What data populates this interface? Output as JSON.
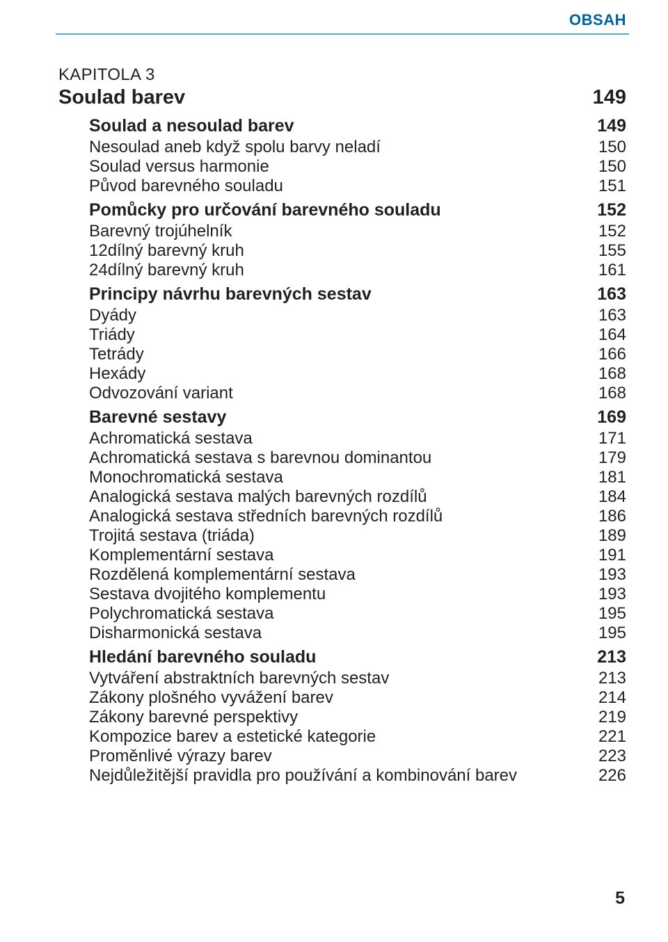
{
  "header": {
    "label": "OBSAH"
  },
  "page_number": "5",
  "toc": {
    "kapitola_label": "KAPITOLA 3",
    "chapter": {
      "title": "Soulad barev",
      "page": "149"
    },
    "sections": [
      {
        "title": "Soulad a nesoulad barev",
        "page": "149",
        "entries": [
          {
            "title": "Nesoulad aneb když spolu barvy neladí",
            "page": "150"
          },
          {
            "title": "Soulad versus harmonie",
            "page": "150"
          },
          {
            "title": "Původ barevného souladu",
            "page": "151"
          }
        ]
      },
      {
        "title": "Pomůcky pro určování barevného souladu",
        "page": "152",
        "entries": [
          {
            "title": "Barevný trojúhelník",
            "page": "152"
          },
          {
            "title": "12dílný barevný kruh",
            "page": "155"
          },
          {
            "title": "24dílný barevný kruh",
            "page": "161"
          }
        ]
      },
      {
        "title": "Principy návrhu barevných sestav",
        "page": "163",
        "entries": [
          {
            "title": "Dyády",
            "page": "163"
          },
          {
            "title": "Triády",
            "page": "164"
          },
          {
            "title": "Tetrády",
            "page": "166"
          },
          {
            "title": "Hexády",
            "page": "168"
          },
          {
            "title": "Odvozování variant",
            "page": "168"
          }
        ]
      },
      {
        "title": "Barevné sestavy",
        "page": "169",
        "entries": [
          {
            "title": "Achromatická sestava",
            "page": "171"
          },
          {
            "title": "Achromatická sestava s barevnou dominantou",
            "page": "179"
          },
          {
            "title": "Monochromatická sestava",
            "page": "181"
          },
          {
            "title": "Analogická sestava malých barevných rozdílů",
            "page": "184"
          },
          {
            "title": "Analogická sestava středních barevných rozdílů",
            "page": "186"
          },
          {
            "title": "Trojitá sestava (triáda)",
            "page": "189"
          },
          {
            "title": "Komplementární sestava",
            "page": "191"
          },
          {
            "title": "Rozdělená komplementární sestava",
            "page": "193"
          },
          {
            "title": "Sestava dvojitého komplementu",
            "page": "193"
          },
          {
            "title": "Polychromatická sestava",
            "page": "195"
          },
          {
            "title": "Disharmonická sestava",
            "page": "195"
          }
        ]
      },
      {
        "title": "Hledání barevného souladu",
        "page": "213",
        "entries": [
          {
            "title": "Vytváření abstraktních barevných sestav",
            "page": "213"
          },
          {
            "title": "Zákony plošného vyvážení barev",
            "page": "214"
          },
          {
            "title": "Zákony barevné perspektivy",
            "page": "219"
          },
          {
            "title": "Kompozice barev a estetické kategorie",
            "page": "221"
          },
          {
            "title": "Proměnlivé výrazy barev",
            "page": "223"
          },
          {
            "title": "Nejdůležitější pravidla pro používání a kombinování barev",
            "page": "226"
          }
        ]
      }
    ]
  },
  "colors": {
    "header_text": "#0061a1",
    "rule": "#5ba7d1",
    "body_text": "#231f20",
    "background": "#ffffff"
  },
  "typography": {
    "header_fontsize_pt": 16,
    "chapter_fontsize_pt": 21,
    "section_fontsize_pt": 18,
    "entry_fontsize_pt": 17,
    "font_family": "sans-serif"
  }
}
